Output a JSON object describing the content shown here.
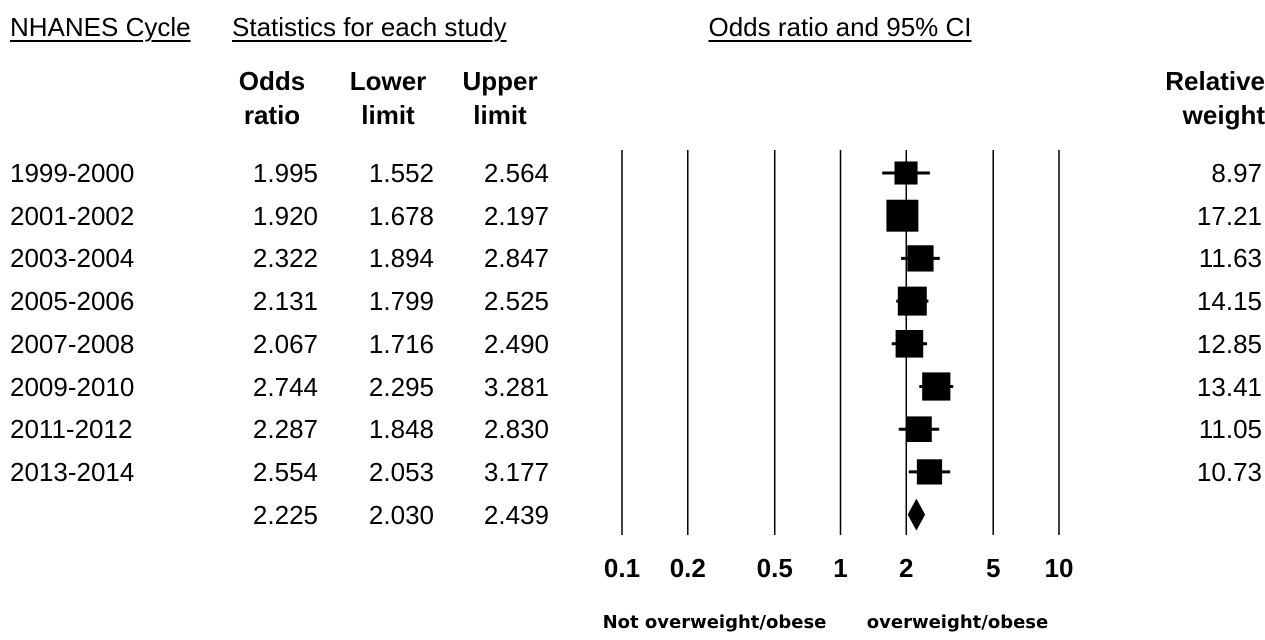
{
  "chart_data": {
    "type": "forest",
    "title": "Odds ratio and 95% CI",
    "headers": {
      "cycle": "NHANES Cycle",
      "stats": "Statistics for each study",
      "odds_ratio": "Odds\nratio",
      "lower": "Lower\nlimit",
      "upper": "Upper\nlimit",
      "weight": "Relative\nweight"
    },
    "categories": [
      "1999-2000",
      "2001-2002",
      "2003-2004",
      "2005-2006",
      "2007-2008",
      "2009-2010",
      "2011-2012",
      "2013-2014"
    ],
    "odds_ratio": [
      1.995,
      1.92,
      2.322,
      2.131,
      2.067,
      2.744,
      2.287,
      2.554
    ],
    "odds_ratio_labels": [
      "1.995",
      "1.920",
      "2.322",
      "2.131",
      "2.067",
      "2.744",
      "2.287",
      "2.554"
    ],
    "lower": [
      1.552,
      1.678,
      1.894,
      1.799,
      1.716,
      2.295,
      1.848,
      2.053
    ],
    "lower_labels": [
      "1.552",
      "1.678",
      "1.894",
      "1.799",
      "1.716",
      "2.295",
      "1.848",
      "2.053"
    ],
    "upper": [
      2.564,
      2.197,
      2.847,
      2.525,
      2.49,
      3.281,
      2.83,
      3.177
    ],
    "upper_labels": [
      "2.564",
      "2.197",
      "2.847",
      "2.525",
      "2.490",
      "3.281",
      "2.830",
      "3.177"
    ],
    "weight": [
      8.97,
      17.21,
      11.63,
      14.15,
      12.85,
      13.41,
      11.05,
      10.73
    ],
    "summary": {
      "odds_ratio": 2.225,
      "odds_ratio_label": "2.225",
      "lower": 2.03,
      "lower_label": "2.030",
      "upper": 2.439,
      "upper_label": "2.439"
    },
    "xscale": "log",
    "xlim": [
      0.1,
      10
    ],
    "xticks": [
      0.1,
      0.2,
      0.5,
      1,
      2,
      5,
      10
    ],
    "grid": true,
    "color": "#000000",
    "footer_left": "Not overweight/obese",
    "footer_right": "overweight/obese"
  }
}
